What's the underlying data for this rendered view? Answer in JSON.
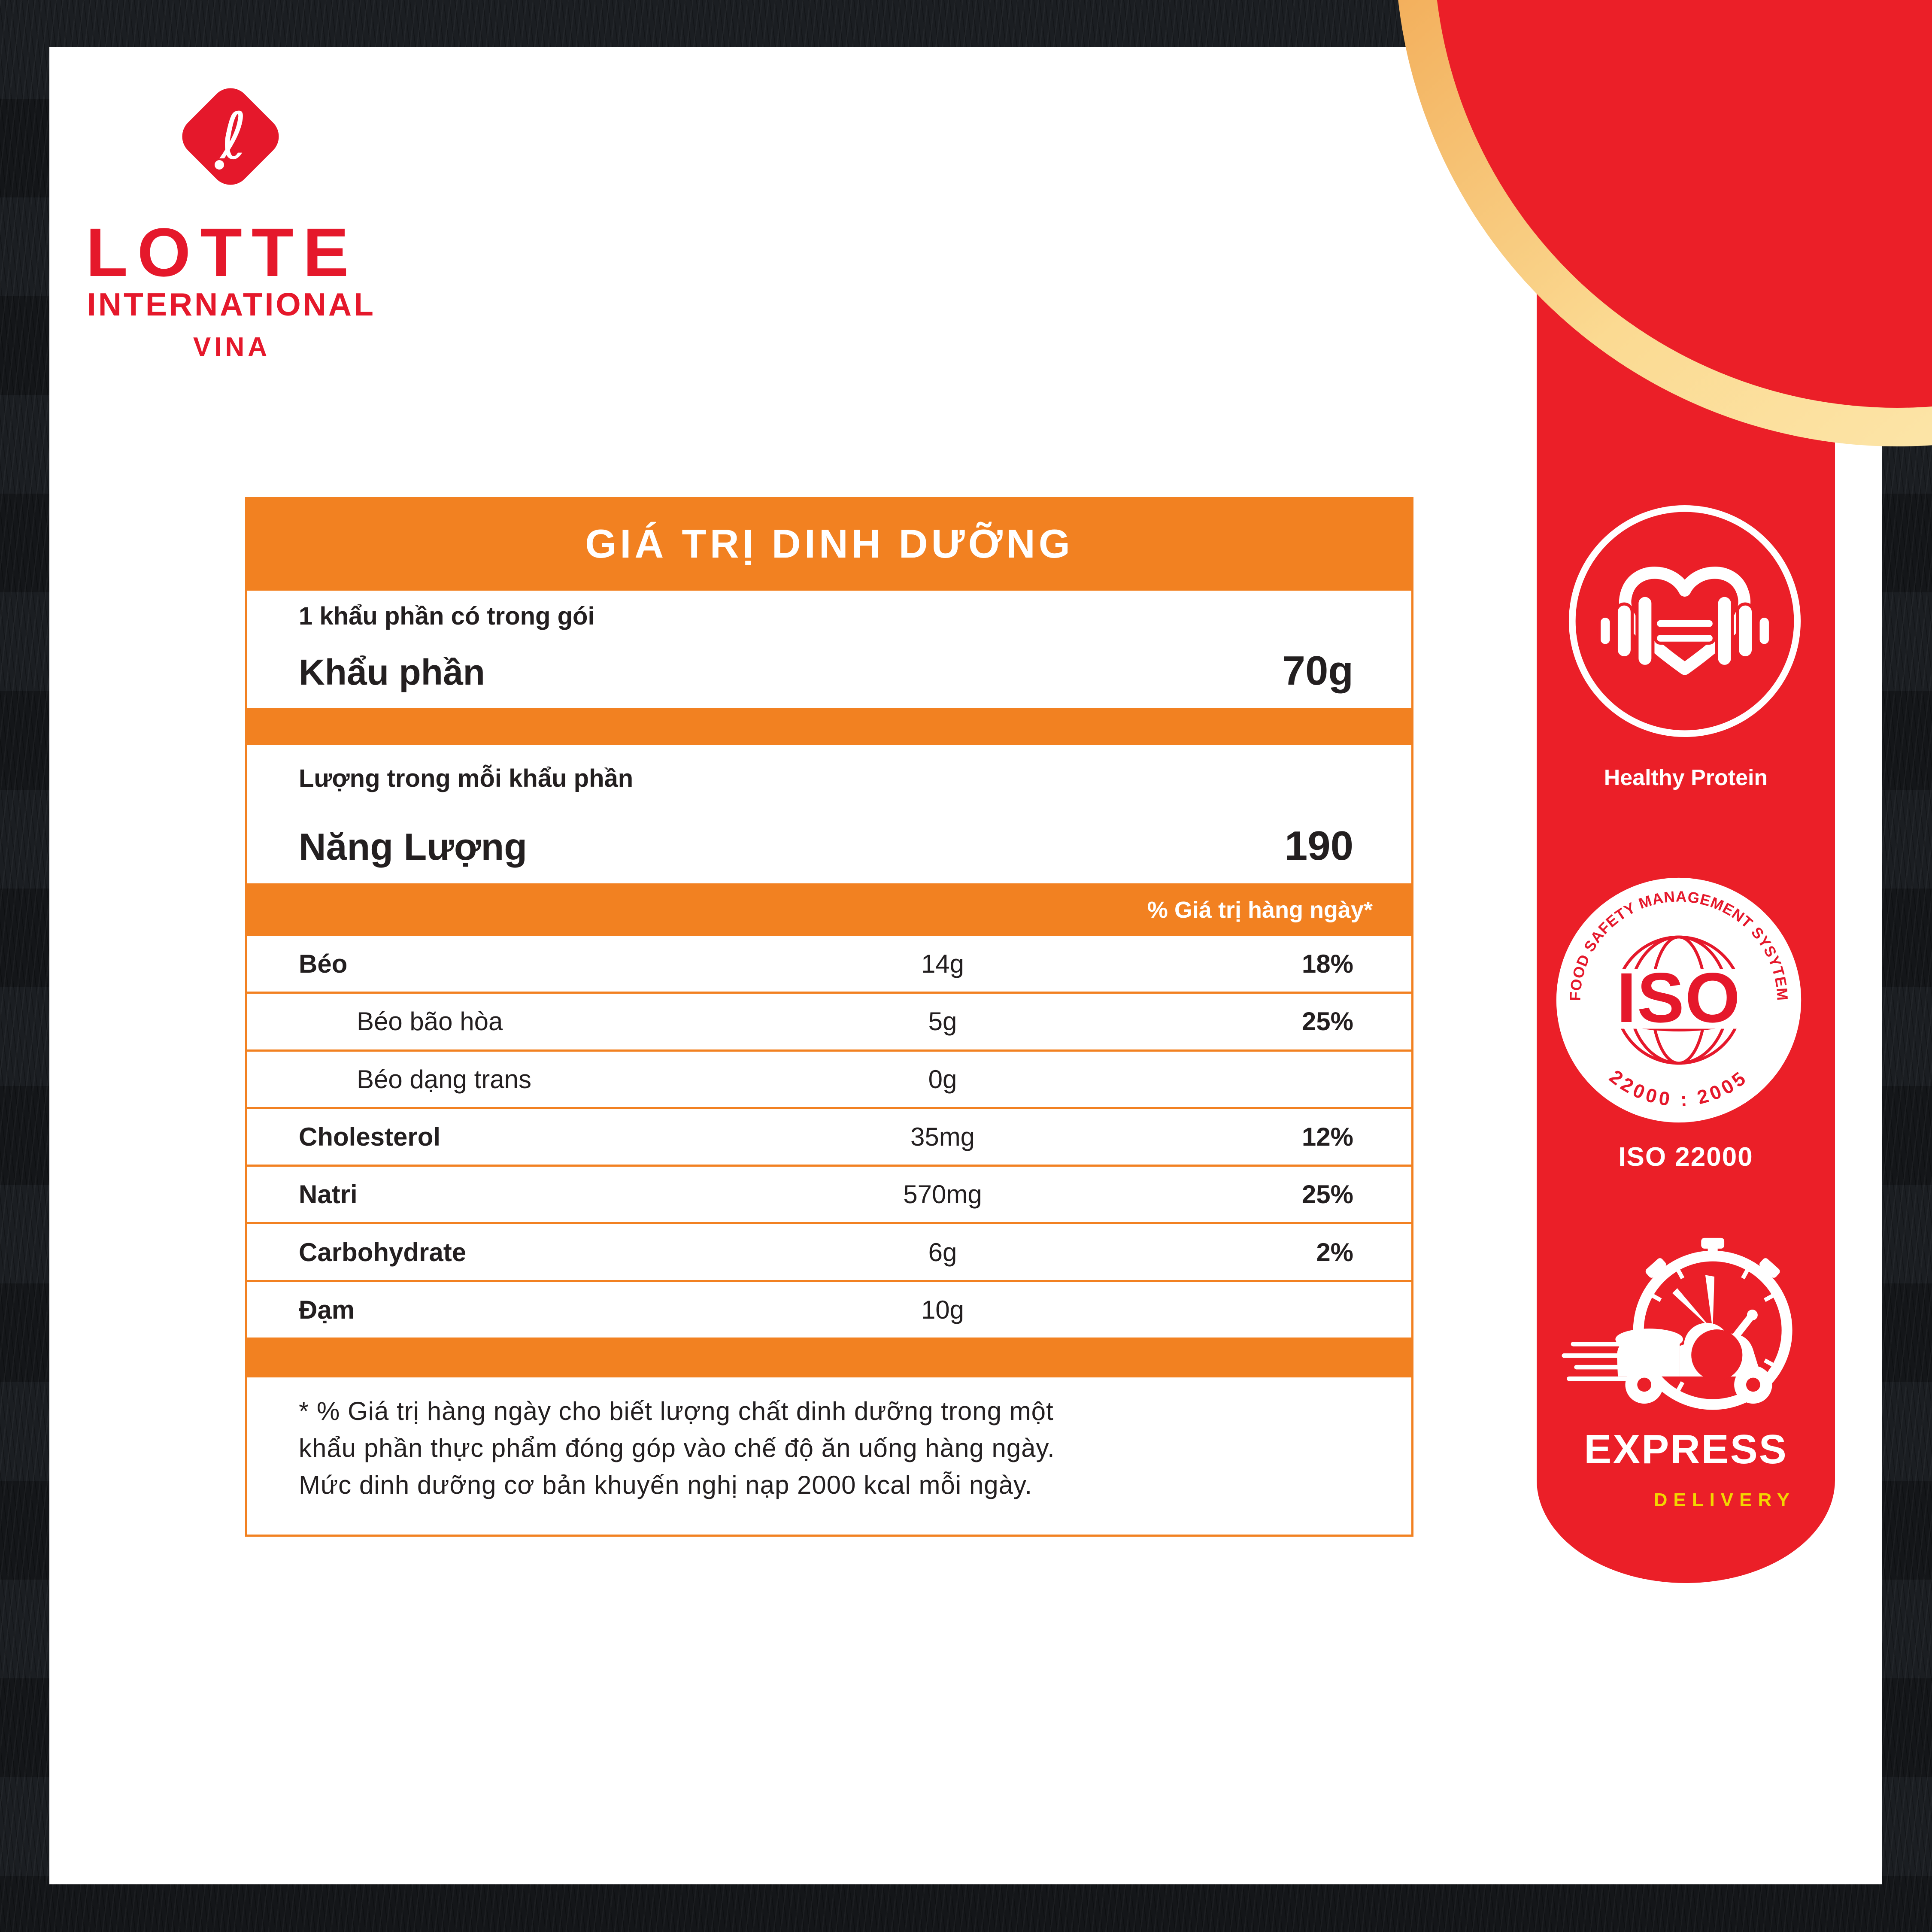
{
  "colors": {
    "orange": "#F28121",
    "red": "#EB1F28",
    "logo_red": "#E5182B",
    "gold_arc_start": "#EF9D45",
    "gold_arc_end": "#FBDA92",
    "text_dark": "#231F20",
    "delivery_yellow": "#F2D600",
    "frame": "#17191C"
  },
  "brand": {
    "name": "LOTTE",
    "subtitle": "INTERNATIONAL",
    "region": "VINA",
    "logo_glyph": "ℓ"
  },
  "nutrition": {
    "title": "GIÁ TRỊ DINH DƯỠNG",
    "serving_note": "1 khẩu phần có trong gói",
    "serving_label": "Khẩu phần",
    "serving_value": "70g",
    "per_serving_note": "Lượng trong mỗi khẩu phần",
    "energy_label": "Năng Lượng",
    "energy_value": "190",
    "daily_value_header": "% Giá trị hàng ngày*",
    "rows": [
      {
        "label": "Béo",
        "amount": "14g",
        "dv": "18%",
        "bold": true,
        "indent": false
      },
      {
        "label": "Béo bão hòa",
        "amount": "5g",
        "dv": "25%",
        "bold": false,
        "indent": true
      },
      {
        "label": "Béo dạng trans",
        "amount": "0g",
        "dv": "",
        "bold": false,
        "indent": true
      },
      {
        "label": "Cholesterol",
        "amount": "35mg",
        "dv": "12%",
        "bold": true,
        "indent": false
      },
      {
        "label": "Natri",
        "amount": "570mg",
        "dv": "25%",
        "bold": true,
        "indent": false
      },
      {
        "label": "Carbohydrate",
        "amount": "6g",
        "dv": "2%",
        "bold": true,
        "indent": false
      },
      {
        "label": "Đạm",
        "amount": "10g",
        "dv": "",
        "bold": true,
        "indent": false
      }
    ],
    "footnote": "* % Giá trị hàng ngày cho biết lượng chất dinh dưỡng trong một\nkhẩu phần thực phẩm đóng góp vào chế độ ăn uống hàng ngày.\nMức dinh dưỡng cơ bản khuyến nghị nạp 2000 kcal mỗi ngày."
  },
  "sidebar": {
    "healthy_protein": {
      "label": "Healthy Protein"
    },
    "iso": {
      "label": "ISO 22000",
      "ring_top": "FOOD SAFETY MANAGEMENT SYSYTEM",
      "ring_bottom": "22000 : 2005",
      "center": "ISO"
    },
    "express": {
      "label": "EXPRESS",
      "sublabel": "DELIVERY"
    }
  }
}
